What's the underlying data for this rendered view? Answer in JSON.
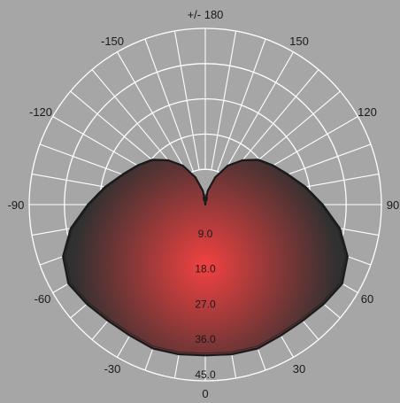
{
  "chart_data": {
    "type": "polar",
    "title": "",
    "angle_labels": [
      "+/- 180",
      "150",
      "120",
      "90",
      "60",
      "30",
      "0",
      "-30",
      "-60",
      "-90",
      "-120",
      "-150"
    ],
    "angle_label_degrees": [
      180,
      150,
      120,
      90,
      60,
      30,
      0,
      -30,
      -60,
      -90,
      -120,
      -150
    ],
    "radial_ticks": [
      0,
      9,
      18,
      27,
      36,
      45
    ],
    "radial_tick_labels": [
      "0",
      "9.0",
      "18.0",
      "27.0",
      "36.0",
      "45.0"
    ],
    "rlim": [
      0,
      45
    ],
    "angular_gridline_step_deg": 10,
    "grid": true,
    "series": [
      {
        "angles_deg": [
          0,
          10,
          20,
          30,
          40,
          50,
          60,
          70,
          80,
          90,
          100,
          110,
          120,
          130,
          140,
          150,
          160,
          170,
          175,
          180
        ],
        "values": [
          38.5,
          38.8,
          39.1,
          38.6,
          38.7,
          39.5,
          40.4,
          38.7,
          34.9,
          30.0,
          26.0,
          22.5,
          20.0,
          17.8,
          14.8,
          11.5,
          7.4,
          3.6,
          1.5,
          0
        ],
        "symmetric": true,
        "color": "#1a1a1a"
      }
    ],
    "colors": {
      "background": "#a6a6a6",
      "grid": "#ffffff",
      "fill_center": "#f24141",
      "fill_edge": "#303030",
      "outline": "#1a1a1a"
    }
  }
}
